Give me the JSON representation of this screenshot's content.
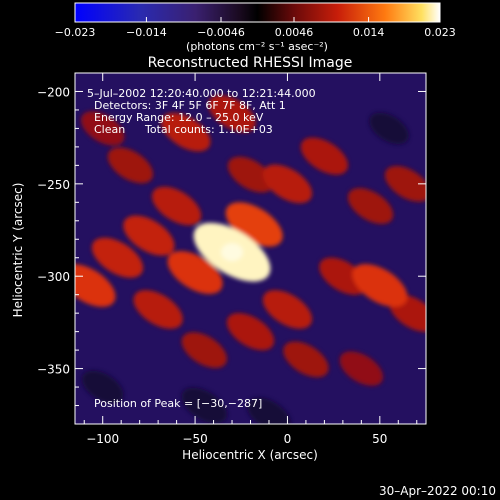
{
  "chart_data": {
    "type": "heatmap",
    "title": "Reconstructed RHESSI Image",
    "xlabel": "Heliocentric X (arcsec)",
    "ylabel": "Heliocentric Y (arcsec)",
    "xlim": [
      -115,
      75
    ],
    "ylim": [
      -380,
      -190
    ],
    "x_ticks": [
      {
        "value": -100,
        "label": "−100"
      },
      {
        "value": -50,
        "label": "−50"
      },
      {
        "value": 0,
        "label": "0"
      },
      {
        "value": 50,
        "label": "50"
      }
    ],
    "y_ticks": [
      {
        "value": -200,
        "label": "−200"
      },
      {
        "value": -250,
        "label": "−250"
      },
      {
        "value": -300,
        "label": "−300"
      },
      {
        "value": -350,
        "label": "−350"
      }
    ],
    "colorbar": {
      "range": [
        -0.023,
        0.023
      ],
      "tick_values": [
        -0.023,
        -0.014,
        -0.0046,
        0.0046,
        0.014,
        0.023
      ],
      "tick_labels": [
        "−0.023",
        "−0.014",
        "−0.0046",
        "0.0046",
        "0.014",
        "0.023"
      ],
      "unit_label": "(photons cm⁻² s⁻¹ asec⁻²)"
    },
    "annotations": {
      "time": "5–Jul–2002 12:20:40.000 to 12:21:44.000",
      "detectors": "Detectors: 3F 4F 5F 6F 7F 8F, Att 1",
      "energy": "Energy Range: 12.0 – 25.0 keV",
      "method": "Clean",
      "counts": "Total counts: 1.10E+03",
      "peak": "Position of Peak = [−30,−287]"
    },
    "peak": {
      "x": -30,
      "y": -287,
      "value": 0.023
    },
    "blobs": [
      {
        "x": -30,
        "y": -287,
        "v": 0.022
      },
      {
        "x": -18,
        "y": -272,
        "v": 0.012
      },
      {
        "x": -50,
        "y": -298,
        "v": 0.011
      },
      {
        "x": -108,
        "y": -305,
        "v": 0.011
      },
      {
        "x": -92,
        "y": -290,
        "v": 0.009
      },
      {
        "x": -75,
        "y": -278,
        "v": 0.009
      },
      {
        "x": -60,
        "y": -262,
        "v": 0.008
      },
      {
        "x": -70,
        "y": -318,
        "v": 0.008
      },
      {
        "x": -55,
        "y": -222,
        "v": 0.008
      },
      {
        "x": -30,
        "y": -212,
        "v": 0.007
      },
      {
        "x": 0,
        "y": -250,
        "v": 0.008
      },
      {
        "x": 20,
        "y": -235,
        "v": 0.007
      },
      {
        "x": 45,
        "y": -262,
        "v": 0.006
      },
      {
        "x": 65,
        "y": -250,
        "v": 0.006
      },
      {
        "x": 0,
        "y": -318,
        "v": 0.008
      },
      {
        "x": -20,
        "y": -330,
        "v": 0.007
      },
      {
        "x": 30,
        "y": -300,
        "v": 0.007
      },
      {
        "x": 50,
        "y": -305,
        "v": 0.011
      },
      {
        "x": 68,
        "y": -320,
        "v": 0.007
      },
      {
        "x": -45,
        "y": -340,
        "v": 0.006
      },
      {
        "x": 10,
        "y": -345,
        "v": 0.006
      },
      {
        "x": 40,
        "y": -350,
        "v": 0.005
      },
      {
        "x": -85,
        "y": -240,
        "v": 0.006
      },
      {
        "x": -100,
        "y": -220,
        "v": 0.005
      },
      {
        "x": -20,
        "y": -245,
        "v": 0.006
      },
      {
        "x": -45,
        "y": -370,
        "v": -0.006
      },
      {
        "x": -10,
        "y": -375,
        "v": -0.005
      },
      {
        "x": 55,
        "y": -220,
        "v": -0.003
      },
      {
        "x": -100,
        "y": -360,
        "v": -0.004
      }
    ]
  },
  "footer": {
    "date": "30–Apr–2022 00:10"
  },
  "colors": {
    "background": "#000000",
    "text": "#ffffff",
    "low": "#3a2090",
    "high": "#ffffff"
  }
}
